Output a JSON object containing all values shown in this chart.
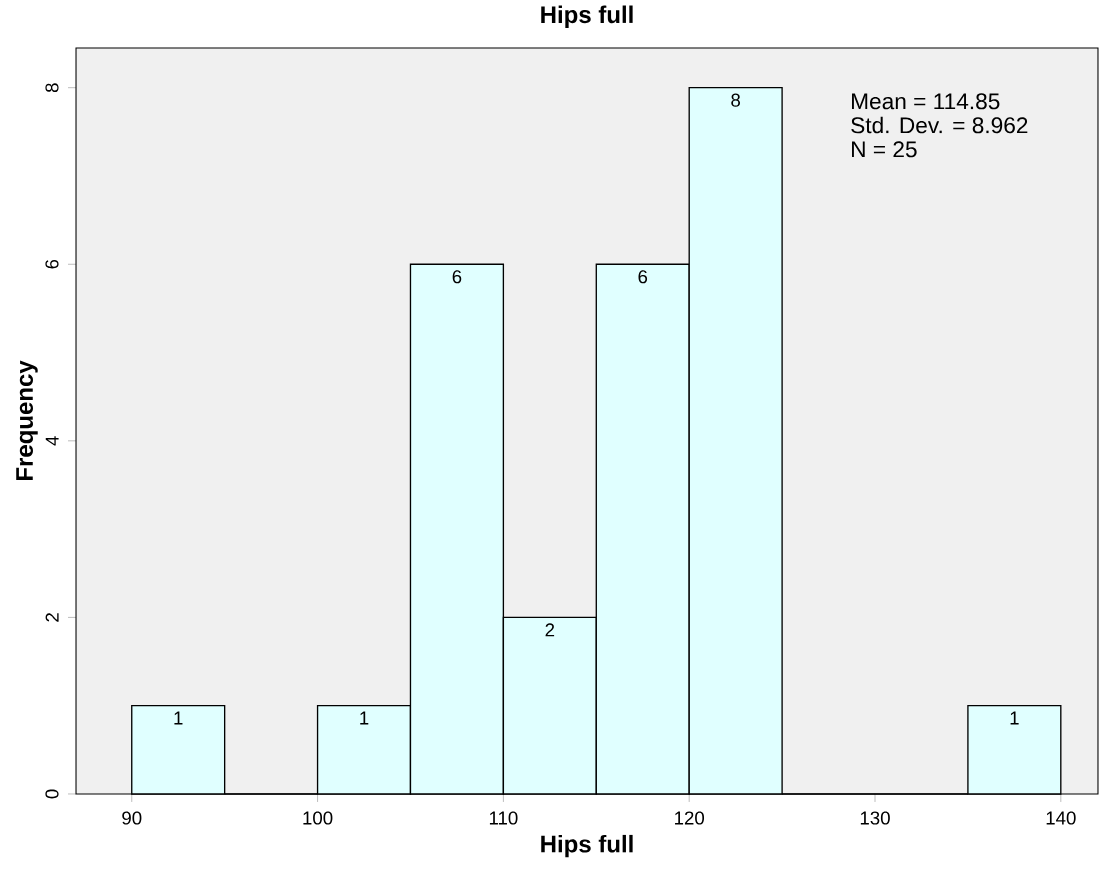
{
  "chart_data": {
    "type": "histogram",
    "title": "Hips full",
    "xlabel": "Hips full",
    "ylabel": "Frequency",
    "bins": [
      90,
      95,
      100,
      105,
      110,
      115,
      120,
      125,
      130,
      135,
      140
    ],
    "values": [
      1,
      0,
      1,
      6,
      2,
      6,
      8,
      0,
      0,
      1
    ],
    "value_labels": [
      "1",
      null,
      "1",
      "6",
      "2",
      "6",
      "8",
      null,
      null,
      "1"
    ],
    "color": "#e0ffff",
    "xlim": [
      87,
      142
    ],
    "ylim": [
      0,
      8.45
    ],
    "xticks": [
      90,
      100,
      110,
      120,
      130,
      140
    ],
    "yticks": [
      0,
      2,
      4,
      6,
      8
    ],
    "grid": false,
    "annotations": [
      "Mean = 114.85",
      "Std. Dev. = 8.962",
      "N = 25"
    ]
  }
}
